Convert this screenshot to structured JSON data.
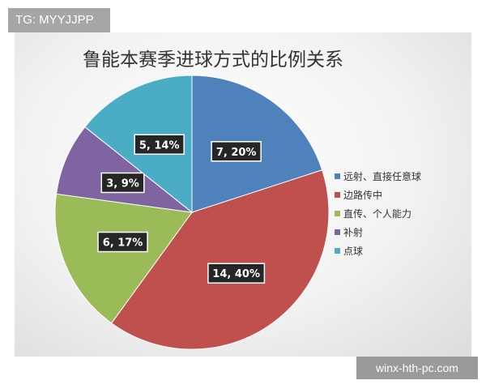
{
  "watermark_top": "TG: MYYJJPP",
  "watermark_bottom": "winx-hth-pc.com",
  "chart_data": {
    "type": "pie",
    "title": "鲁能本赛季进球方式的比例关系",
    "categories": [
      "远射、直接任意球",
      "边路传中",
      "直传、个人能力",
      "补射",
      "点球"
    ],
    "values": [
      7,
      14,
      6,
      3,
      5
    ],
    "percent_labels": [
      "7, 20%",
      "14, 40%",
      "6, 17%",
      "3, 9%",
      "5, 14%"
    ],
    "colors": [
      "#4f81bd",
      "#c0504d",
      "#9bbb59",
      "#8064a2",
      "#4bacc6"
    ],
    "start_angle": "12 o'clock, clockwise",
    "legend_position": "right"
  }
}
